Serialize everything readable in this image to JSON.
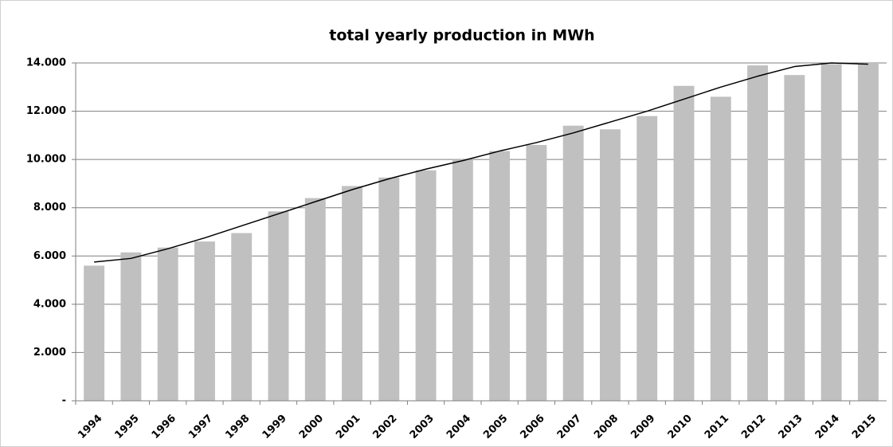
{
  "chart_data": {
    "type": "bar",
    "title": "total yearly production in MWh",
    "categories": [
      "1994",
      "1995",
      "1996",
      "1997",
      "1998",
      "1999",
      "2000",
      "2001",
      "2002",
      "2003",
      "2004",
      "2005",
      "2006",
      "2007",
      "2008",
      "2009",
      "2010",
      "2011",
      "2012",
      "2013",
      "2014",
      "2015"
    ],
    "values": [
      5600,
      6150,
      6350,
      6600,
      6950,
      7850,
      8400,
      8900,
      9250,
      9550,
      10000,
      10350,
      10600,
      11400,
      11250,
      11800,
      13050,
      12600,
      13900,
      13500,
      13950,
      14000
    ],
    "color": "#c0c0c0",
    "trendline": {
      "color": "#000000",
      "values": [
        5750,
        5900,
        6300,
        6750,
        7250,
        7750,
        8250,
        8750,
        9200,
        9600,
        9950,
        10350,
        10700,
        11100,
        11550,
        12000,
        12500,
        13000,
        13450,
        13850,
        14000,
        13950
      ]
    },
    "ylim": [
      0,
      14000
    ],
    "yticks": [
      {
        "value": 0,
        "label": "-"
      },
      {
        "value": 2000,
        "label": "2.000"
      },
      {
        "value": 4000,
        "label": "4.000"
      },
      {
        "value": 6000,
        "label": "6.000"
      },
      {
        "value": 8000,
        "label": "8.000"
      },
      {
        "value": 10000,
        "label": "10.000"
      },
      {
        "value": 12000,
        "label": "12.000"
      },
      {
        "value": 14000,
        "label": "14.000"
      }
    ],
    "grid": true
  }
}
